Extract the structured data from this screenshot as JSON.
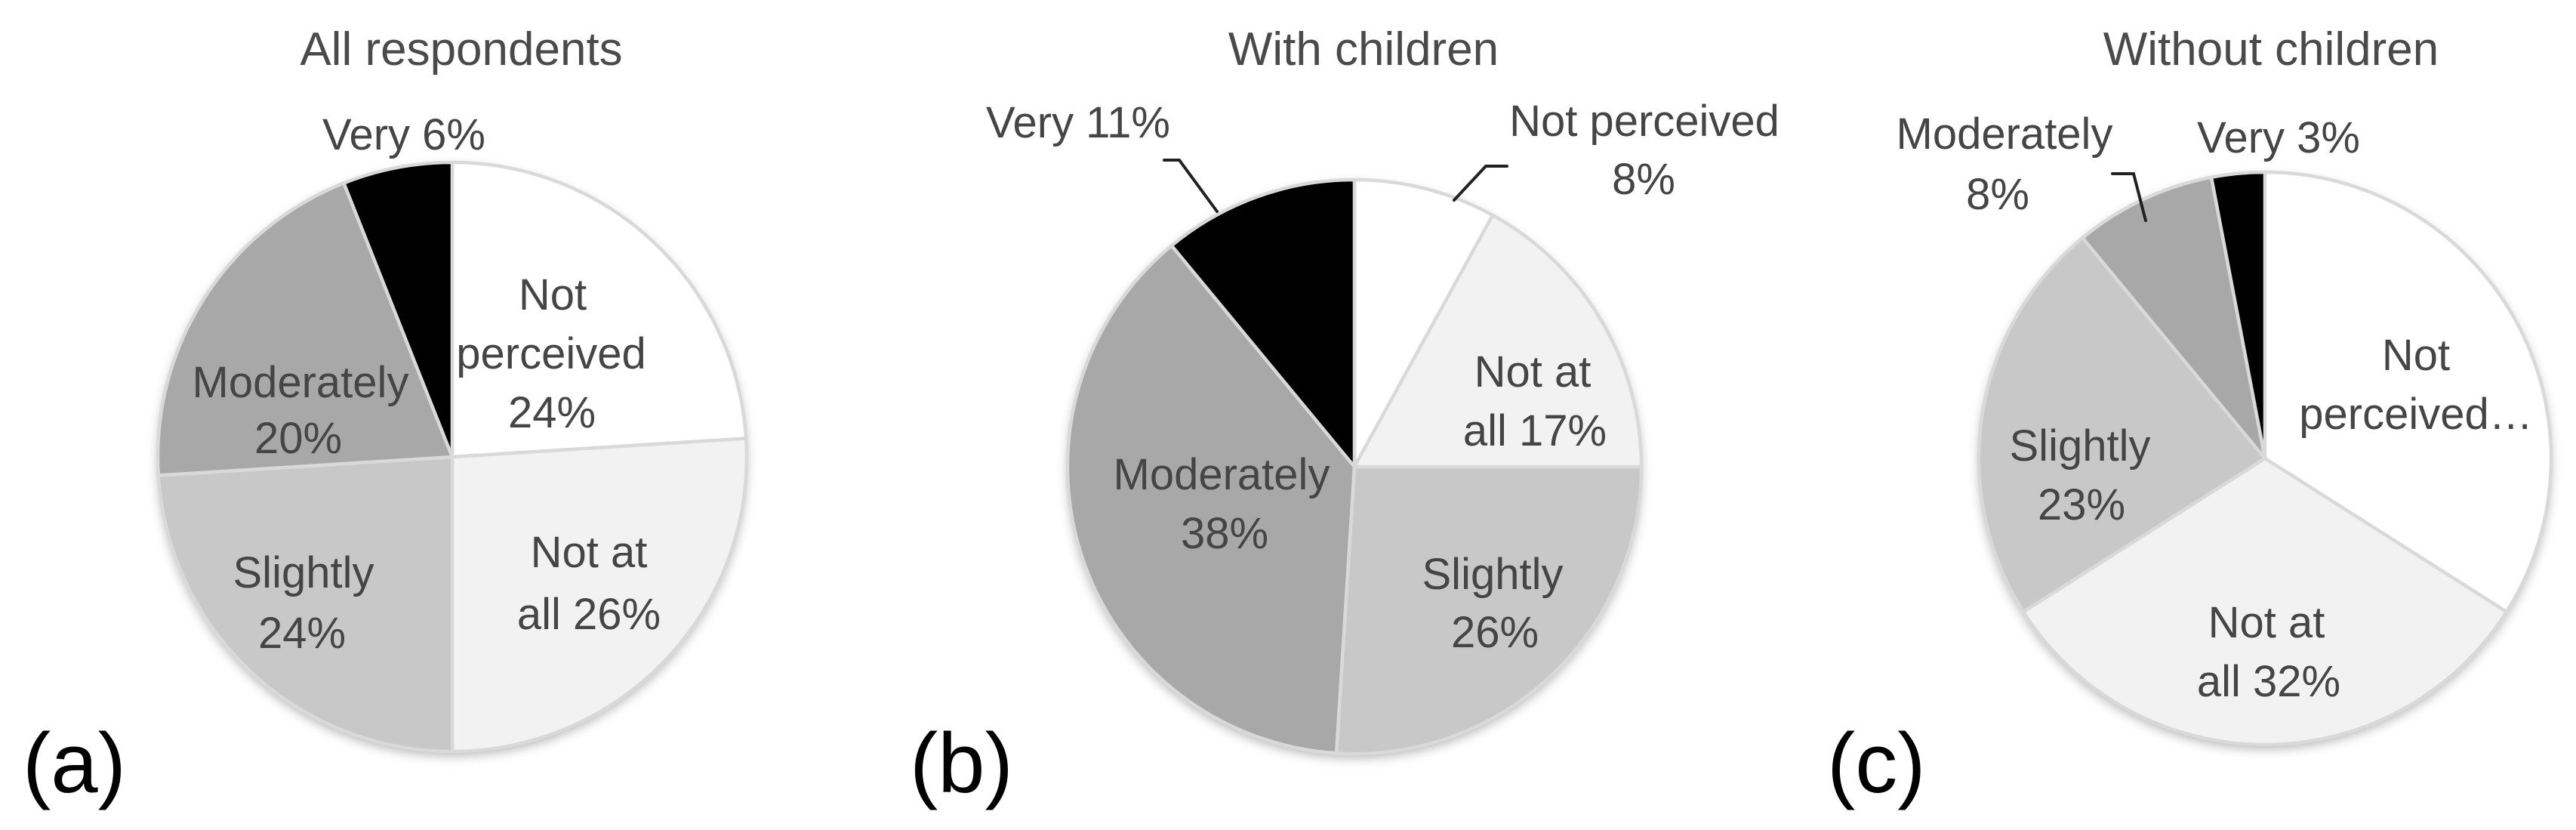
{
  "figure_title": "",
  "colors": {
    "background": "#ffffff",
    "not_perceived": "#ffffff",
    "not_at_all": "#f2f2f2",
    "slightly": "#c8c8c8",
    "moderately": "#a8a8a8",
    "very": "#000000",
    "pie_outline": "#d9d9d9",
    "label_text": "#454545",
    "title_text": "#4a4a4a",
    "panel_label_text": "#000000",
    "leader_line": "#222222"
  },
  "chart_data": [
    {
      "type": "pie",
      "panel_label": "(a)",
      "title": "All respondents",
      "direction": "clockwise",
      "start_angle": "12 o'clock",
      "legend_position": "none",
      "slices": [
        {
          "label": "Not perceived",
          "value_pct": 24,
          "color": "#ffffff",
          "label_lines": [
            "Not",
            "perceived",
            "24%"
          ],
          "label_placement": "inside",
          "has_leader_line": false
        },
        {
          "label": "Not at all",
          "value_pct": 26,
          "color": "#f2f2f2",
          "label_lines": [
            "Not at",
            "all 26%"
          ],
          "label_placement": "inside",
          "has_leader_line": false
        },
        {
          "label": "Slightly",
          "value_pct": 24,
          "color": "#c8c8c8",
          "label_lines": [
            "Slightly",
            "24%"
          ],
          "label_placement": "inside",
          "has_leader_line": false
        },
        {
          "label": "Moderately",
          "value_pct": 20,
          "color": "#a8a8a8",
          "label_lines": [
            "Moderately",
            "20%"
          ],
          "label_placement": "inside",
          "has_leader_line": false
        },
        {
          "label": "Very",
          "value_pct": 6,
          "color": "#000000",
          "label_lines": [
            "Very 6%"
          ],
          "label_placement": "outside",
          "has_leader_line": false
        }
      ]
    },
    {
      "type": "pie",
      "panel_label": "(b)",
      "title": "With children",
      "direction": "clockwise",
      "start_angle": "12 o'clock",
      "legend_position": "none",
      "slices": [
        {
          "label": "Not perceived",
          "value_pct": 8,
          "color": "#ffffff",
          "label_lines": [
            "Not perceived",
            "8%"
          ],
          "label_placement": "outside",
          "has_leader_line": true
        },
        {
          "label": "Not at all",
          "value_pct": 17,
          "color": "#f2f2f2",
          "label_lines": [
            "Not at",
            "all 17%"
          ],
          "label_placement": "inside",
          "has_leader_line": false
        },
        {
          "label": "Slightly",
          "value_pct": 26,
          "color": "#c8c8c8",
          "label_lines": [
            "Slightly",
            "26%"
          ],
          "label_placement": "inside",
          "has_leader_line": false
        },
        {
          "label": "Moderately",
          "value_pct": 38,
          "color": "#a8a8a8",
          "label_lines": [
            "Moderately",
            "38%"
          ],
          "label_placement": "inside",
          "has_leader_line": false
        },
        {
          "label": "Very",
          "value_pct": 11,
          "color": "#000000",
          "label_lines": [
            "Very 11%"
          ],
          "label_placement": "outside",
          "has_leader_line": true
        }
      ]
    },
    {
      "type": "pie",
      "panel_label": "(c)",
      "title": "Without children",
      "direction": "clockwise",
      "start_angle": "12 o'clock",
      "legend_position": "none",
      "slices": [
        {
          "label": "Not perceived",
          "value_pct": 34,
          "color": "#ffffff",
          "label_lines": [
            "Not",
            "perceived…"
          ],
          "label_placement": "inside",
          "has_leader_line": false,
          "label_truncated": true
        },
        {
          "label": "Not at all",
          "value_pct": 32,
          "color": "#f2f2f2",
          "label_lines": [
            "Not at",
            "all 32%"
          ],
          "label_placement": "inside",
          "has_leader_line": false
        },
        {
          "label": "Slightly",
          "value_pct": 23,
          "color": "#c8c8c8",
          "label_lines": [
            "Slightly",
            "23%"
          ],
          "label_placement": "inside",
          "has_leader_line": false
        },
        {
          "label": "Moderately",
          "value_pct": 8,
          "color": "#a8a8a8",
          "label_lines": [
            "Moderately",
            "8%"
          ],
          "label_placement": "outside",
          "has_leader_line": true
        },
        {
          "label": "Very",
          "value_pct": 3,
          "color": "#000000",
          "label_lines": [
            "Very 3%"
          ],
          "label_placement": "outside",
          "has_leader_line": false
        }
      ]
    }
  ]
}
